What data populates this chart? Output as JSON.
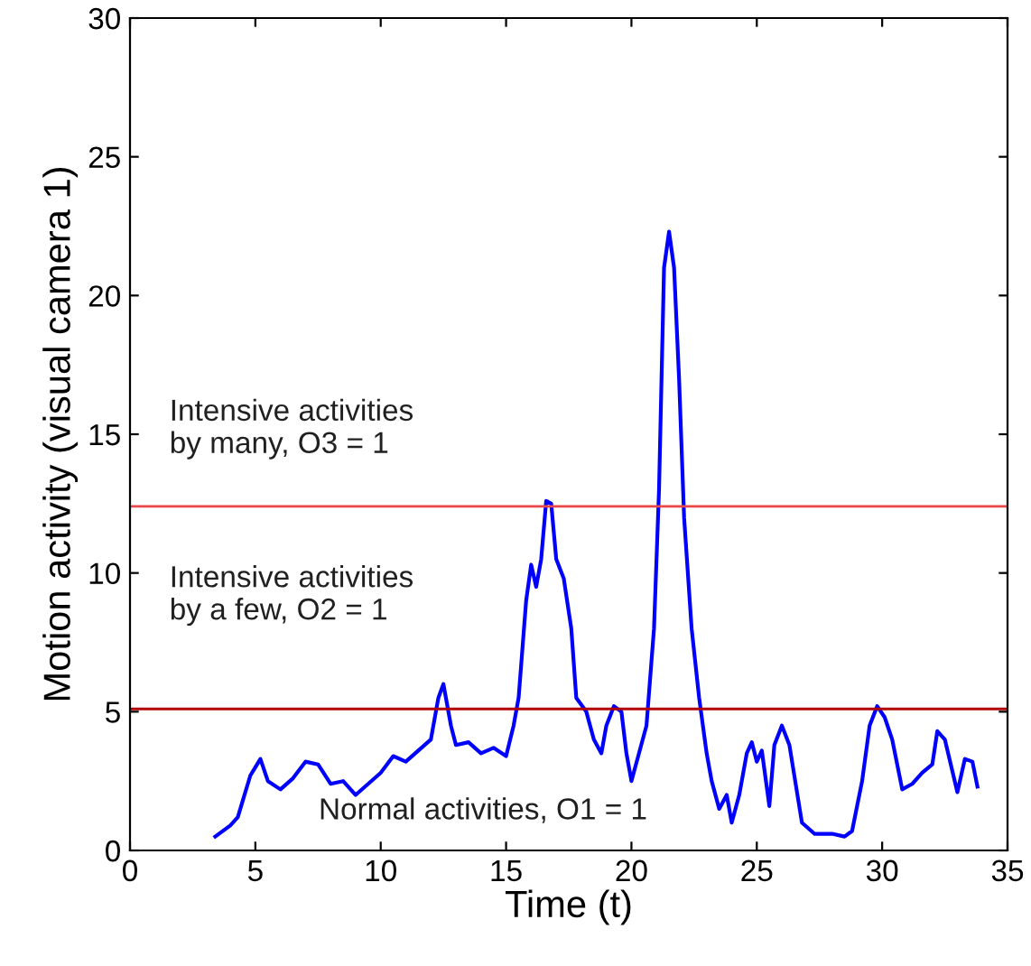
{
  "chart_data": {
    "type": "line",
    "xlabel": "Time (t)",
    "ylabel": "Motion activity (visual camera 1)",
    "xlim": [
      0,
      35
    ],
    "ylim": [
      0,
      30
    ],
    "xticks": [
      0,
      5,
      10,
      15,
      20,
      25,
      30,
      35
    ],
    "yticks": [
      0,
      5,
      10,
      15,
      20,
      25,
      30
    ],
    "grid": false,
    "legend": false,
    "series": [
      {
        "color": "#0000ff",
        "x": [
          3.4,
          4.0,
          4.3,
          4.5,
          4.8,
          5.0,
          5.2,
          5.5,
          6.0,
          6.5,
          7.0,
          7.5,
          8.0,
          8.5,
          9.0,
          9.5,
          10.0,
          10.5,
          11.0,
          11.5,
          12.0,
          12.3,
          12.5,
          12.8,
          13.0,
          13.5,
          14.0,
          14.5,
          15.0,
          15.3,
          15.5,
          15.8,
          16.0,
          16.2,
          16.4,
          16.6,
          16.8,
          17.0,
          17.3,
          17.6,
          17.8,
          18.2,
          18.5,
          18.8,
          19.0,
          19.3,
          19.6,
          19.8,
          20.0,
          20.3,
          20.6,
          20.9,
          21.1,
          21.3,
          21.5,
          21.7,
          21.9,
          22.1,
          22.4,
          22.7,
          23.0,
          23.2,
          23.5,
          23.8,
          24.0,
          24.3,
          24.6,
          24.8,
          25.0,
          25.2,
          25.5,
          25.7,
          26.0,
          26.3,
          26.8,
          27.3,
          28.0,
          28.5,
          28.8,
          29.2,
          29.5,
          29.8,
          30.1,
          30.4,
          30.8,
          31.2,
          31.6,
          32.0,
          32.2,
          32.5,
          33.0,
          33.3,
          33.6,
          33.8
        ],
        "values": [
          0.5,
          0.9,
          1.2,
          1.8,
          2.7,
          3.0,
          3.3,
          2.5,
          2.2,
          2.6,
          3.2,
          3.1,
          2.4,
          2.5,
          2.0,
          2.4,
          2.8,
          3.4,
          3.2,
          3.6,
          4.0,
          5.5,
          6.0,
          4.5,
          3.8,
          3.9,
          3.5,
          3.7,
          3.4,
          4.5,
          5.5,
          9.0,
          10.3,
          9.5,
          10.5,
          12.6,
          12.5,
          10.5,
          9.8,
          8.0,
          5.5,
          5.0,
          4.0,
          3.5,
          4.5,
          5.2,
          5.0,
          3.5,
          2.5,
          3.5,
          4.5,
          8.0,
          13,
          21,
          22.3,
          21,
          17,
          12,
          8,
          5.5,
          3.5,
          2.5,
          1.5,
          2.0,
          1.0,
          2.0,
          3.5,
          3.9,
          3.2,
          3.6,
          1.6,
          3.8,
          4.5,
          3.8,
          1.0,
          0.6,
          0.6,
          0.5,
          0.7,
          2.5,
          4.5,
          5.2,
          4.8,
          4.0,
          2.2,
          2.4,
          2.8,
          3.1,
          4.3,
          4.0,
          2.1,
          3.3,
          3.2,
          2.3
        ]
      }
    ],
    "ref_lines": [
      {
        "axis": "y",
        "value": 12.4,
        "color": "#e84848"
      },
      {
        "axis": "y",
        "value": 5.1,
        "color": "#b00000"
      }
    ],
    "annotations": [
      "Intensive activities\nby many, O3 = 1",
      "Intensive activities\nby a few, O2 = 1",
      "Normal activities, O1 = 1"
    ]
  }
}
